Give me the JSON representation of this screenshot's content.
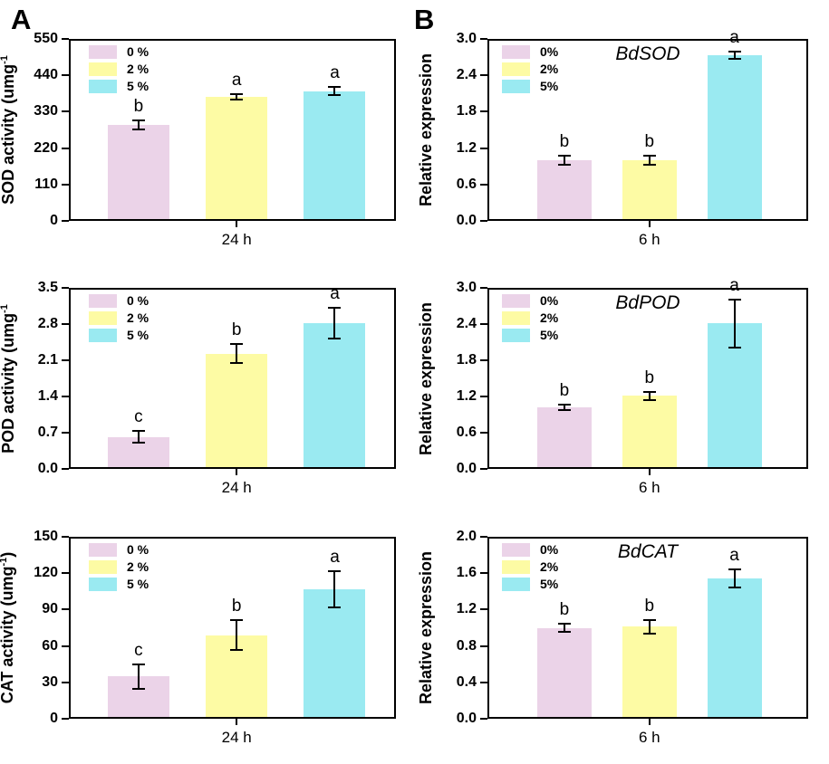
{
  "figure": {
    "panel_letters": [
      "A",
      "B"
    ],
    "background": "#FFFFFF",
    "axis_color": "#000000",
    "series_colors": {
      "pct0": "#EBD3E8",
      "pct2": "#FDFBA4",
      "pct5": "#9AEAF1"
    }
  },
  "chart_data": [
    {
      "id": "sod-activity-24h",
      "type": "bar",
      "panel_column": "A",
      "row": 0,
      "title": "",
      "ylabel": {
        "text": "SOD activity (umg",
        "sup": "-1",
        "tail": ""
      },
      "xlabel": "24 h",
      "ylim": [
        0,
        550
      ],
      "ytick_labels": [
        "0",
        "110",
        "220",
        "330",
        "440",
        "550"
      ],
      "legend": [
        "0 %",
        "2 %",
        "5 %"
      ],
      "legend_position": "top-left",
      "grid": false,
      "categories": [
        "0 %",
        "2 %",
        "5 %"
      ],
      "colors": [
        "#EBD3E8",
        "#FDFBA4",
        "#9AEAF1"
      ],
      "values": [
        290,
        375,
        392
      ],
      "errors": [
        14,
        9,
        13
      ],
      "sig_letters": [
        "b",
        "a",
        "a"
      ]
    },
    {
      "id": "bdsod-expression-6h",
      "type": "bar",
      "panel_column": "B",
      "row": 0,
      "title": "BdSOD",
      "ylabel": {
        "text": "Relative expression",
        "sup": "",
        "tail": ""
      },
      "xlabel": "6 h",
      "ylim": [
        0,
        3.0
      ],
      "ytick_labels": [
        "0.0",
        "0.6",
        "1.2",
        "1.8",
        "2.4",
        "3.0"
      ],
      "legend": [
        "0%",
        "2%",
        "5%"
      ],
      "legend_position": "top-left",
      "grid": false,
      "categories": [
        "0%",
        "2%",
        "5%"
      ],
      "colors": [
        "#EBD3E8",
        "#FDFBA4",
        "#9AEAF1"
      ],
      "values": [
        1.0,
        1.0,
        2.73
      ],
      "errors": [
        0.07,
        0.07,
        0.06
      ],
      "sig_letters": [
        "b",
        "b",
        "a"
      ]
    },
    {
      "id": "pod-activity-24h",
      "type": "bar",
      "panel_column": "A",
      "row": 1,
      "title": "",
      "ylabel": {
        "text": "POD activity (umg",
        "sup": "-1",
        "tail": ""
      },
      "xlabel": "24 h",
      "ylim": [
        0,
        3.5
      ],
      "ytick_labels": [
        "0.0",
        "0.7",
        "1.4",
        "2.1",
        "2.8",
        "3.5"
      ],
      "legend": [
        "0 %",
        "2 %",
        "5 %"
      ],
      "legend_position": "top-left",
      "grid": false,
      "categories": [
        "0 %",
        "2 %",
        "5 %"
      ],
      "colors": [
        "#EBD3E8",
        "#FDFBA4",
        "#9AEAF1"
      ],
      "values": [
        0.62,
        2.23,
        2.82
      ],
      "errors": [
        0.12,
        0.18,
        0.3
      ],
      "sig_letters": [
        "c",
        "b",
        "a"
      ]
    },
    {
      "id": "bdpod-expression-6h",
      "type": "bar",
      "panel_column": "B",
      "row": 1,
      "title": "BdPOD",
      "ylabel": {
        "text": "Relative expression",
        "sup": "",
        "tail": ""
      },
      "xlabel": "6 h",
      "ylim": [
        0,
        3.0
      ],
      "ytick_labels": [
        "0.0",
        "0.6",
        "1.2",
        "1.8",
        "2.4",
        "3.0"
      ],
      "legend": [
        "0%",
        "2%",
        "5%"
      ],
      "legend_position": "top-left",
      "grid": false,
      "categories": [
        "0%",
        "2%",
        "5%"
      ],
      "values": [
        1.02,
        1.21,
        2.41
      ],
      "colors": [
        "#EBD3E8",
        "#FDFBA4",
        "#9AEAF1"
      ],
      "errors": [
        0.04,
        0.07,
        0.4
      ],
      "sig_letters": [
        "b",
        "b",
        "a"
      ]
    },
    {
      "id": "cat-activity-24h",
      "type": "bar",
      "panel_column": "A",
      "row": 2,
      "title": "",
      "ylabel": {
        "text": "CAT activity (umg",
        "sup": "-1",
        "tail": ")"
      },
      "xlabel": "24 h",
      "ylim": [
        0,
        150
      ],
      "ytick_labels": [
        "0",
        "30",
        "60",
        "90",
        "120",
        "150"
      ],
      "legend": [
        "0 %",
        "2 %",
        "5 %"
      ],
      "legend_position": "top-left",
      "grid": false,
      "categories": [
        "0 %",
        "2 %",
        "5 %"
      ],
      "colors": [
        "#EBD3E8",
        "#FDFBA4",
        "#9AEAF1"
      ],
      "values": [
        35,
        69,
        107
      ],
      "errors": [
        10,
        12,
        15
      ],
      "sig_letters": [
        "c",
        "b",
        "a"
      ]
    },
    {
      "id": "bdcat-expression-6h",
      "type": "bar",
      "panel_column": "B",
      "row": 2,
      "title": "BdCAT",
      "ylabel": {
        "text": "Relative expression",
        "sup": "",
        "tail": ""
      },
      "xlabel": "6 h",
      "ylim": [
        0,
        2.0
      ],
      "ytick_labels": [
        "0.0",
        "0.4",
        "0.8",
        "1.2",
        "1.6",
        "2.0"
      ],
      "legend": [
        "0%",
        "2%",
        "5%"
      ],
      "legend_position": "top-left",
      "grid": false,
      "categories": [
        "0%",
        "2%",
        "5%"
      ],
      "colors": [
        "#EBD3E8",
        "#FDFBA4",
        "#9AEAF1"
      ],
      "values": [
        1.0,
        1.01,
        1.54
      ],
      "errors": [
        0.04,
        0.07,
        0.1
      ],
      "sig_letters": [
        "b",
        "b",
        "a"
      ]
    }
  ]
}
